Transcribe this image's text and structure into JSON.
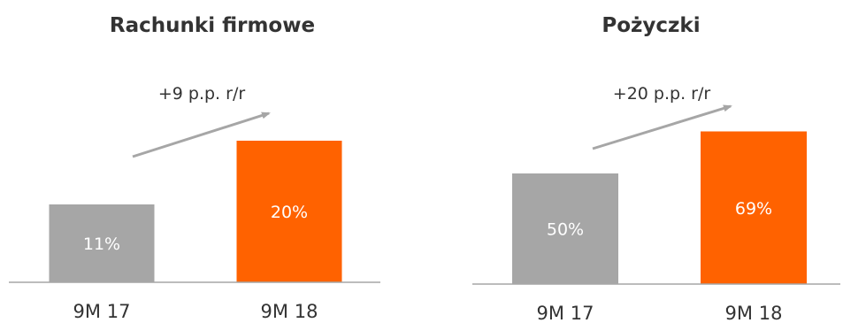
{
  "chart_data": [
    {
      "type": "bar",
      "title": "Rachunki firmowe",
      "categories": [
        "9M 17",
        "9M 18"
      ],
      "values": [
        11,
        20
      ],
      "value_labels": [
        "11%",
        "20%"
      ],
      "colors": [
        "#a6a6a6",
        "#ff6200"
      ],
      "annotation": "+9 p.p. r/r",
      "ylim": [
        0,
        25
      ]
    },
    {
      "type": "bar",
      "title": "Pożyczki",
      "categories": [
        "9M 17",
        "9M 18"
      ],
      "values": [
        50,
        69
      ],
      "value_labels": [
        "50%",
        "69%"
      ],
      "colors": [
        "#a6a6a6",
        "#ff6200"
      ],
      "annotation": "+20 p.p. r/r",
      "ylim": [
        0,
        80
      ]
    }
  ],
  "colors": {
    "axis": "#a6a6a6",
    "arrow": "#a6a6a6",
    "text": "#333333",
    "label_on_bar": "#ffffff"
  }
}
